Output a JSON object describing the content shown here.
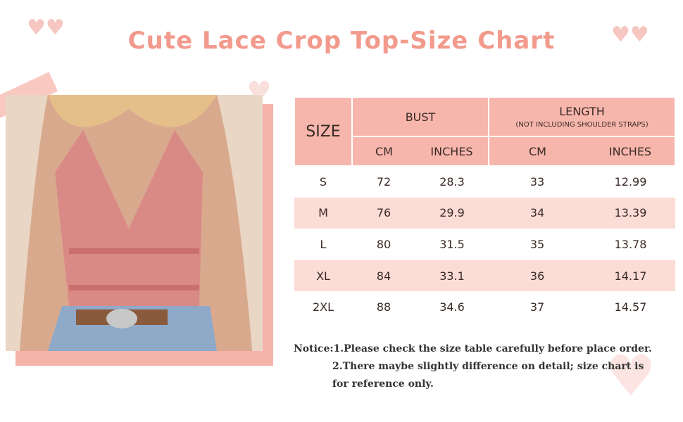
{
  "title": "Cute Lace Crop Top-Size Chart",
  "colors": {
    "header": "#f7b6ac",
    "row_alt": "#fcdcd6",
    "title": "#f29a8c"
  },
  "table": {
    "size_header": "SIZE",
    "bust_header": "BUST",
    "length_header": "LENGTH",
    "length_note": "(NOT INCLUDING SHOULDER STRAPS)",
    "units": [
      "CM",
      "INCHES",
      "CM",
      "INCHES"
    ],
    "rows": [
      [
        "S",
        "72",
        "28.3",
        "33",
        "12.99"
      ],
      [
        "M",
        "76",
        "29.9",
        "34",
        "13.39"
      ],
      [
        "L",
        "80",
        "31.5",
        "35",
        "13.78"
      ],
      [
        "XL",
        "84",
        "33.1",
        "36",
        "14.17"
      ],
      [
        "2XL",
        "88",
        "34.6",
        "37",
        "14.57"
      ]
    ]
  },
  "notice": {
    "line1": "Notice:1.Please check the size table carefully before place order.",
    "line2": "2.There maybe slightly difference on detail; size chart is",
    "line3": "for reference only."
  }
}
